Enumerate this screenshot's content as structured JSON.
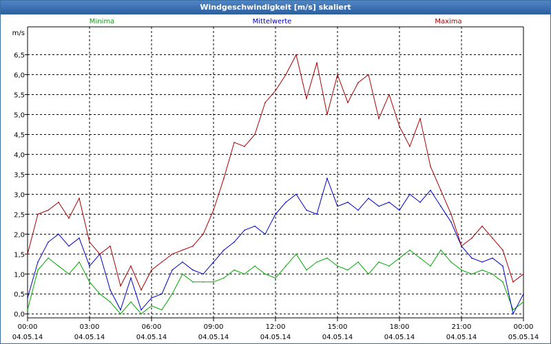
{
  "window": {
    "title": "Windgeschwindigkeit [m/s] skaliert"
  },
  "chart_data": {
    "type": "line",
    "title": "Windgeschwindigkeit [m/s] skaliert",
    "ylabel": "m/s",
    "xlabel": "",
    "ylim": [
      -0.1,
      7.2
    ],
    "yticks": [
      "0,0",
      "0,5",
      "1,0",
      "1,5",
      "2,0",
      "2,5",
      "3,0",
      "3,5",
      "4,0",
      "4,5",
      "5,0",
      "5,5",
      "6,0",
      "6,5"
    ],
    "yticks_values": [
      0,
      0.5,
      1,
      1.5,
      2,
      2.5,
      3,
      3.5,
      4,
      4.5,
      5,
      5.5,
      6,
      6.5
    ],
    "xticks": [
      {
        "time": "00:00",
        "date": "04.05.14"
      },
      {
        "time": "03:00",
        "date": "04.05.14"
      },
      {
        "time": "06:00",
        "date": "04.05.14"
      },
      {
        "time": "09:00",
        "date": "04.05.14"
      },
      {
        "time": "12:00",
        "date": "04.05.14"
      },
      {
        "time": "15:00",
        "date": "04.05.14"
      },
      {
        "time": "18:00",
        "date": "04.05.14"
      },
      {
        "time": "21:00",
        "date": "04.05.14"
      },
      {
        "time": "00:00",
        "date": "05.05.14"
      }
    ],
    "x_hours": [
      0,
      0.5,
      1,
      1.5,
      2,
      2.5,
      3,
      3.5,
      4,
      4.5,
      5,
      5.5,
      6,
      6.5,
      7,
      7.5,
      8,
      8.5,
      9,
      9.5,
      10,
      10.5,
      11,
      11.5,
      12,
      12.5,
      13,
      13.5,
      14,
      14.5,
      15,
      15.5,
      16,
      16.5,
      17,
      17.5,
      18,
      18.5,
      19,
      19.5,
      20,
      20.5,
      21,
      21.5,
      22,
      22.5,
      23,
      23.5,
      24
    ],
    "grid": true,
    "series": [
      {
        "name": "Minima",
        "color": "#00aa00",
        "values": [
          0.1,
          1.1,
          1.4,
          1.2,
          1.0,
          1.3,
          0.8,
          0.5,
          0.3,
          0.0,
          0.3,
          0.0,
          0.2,
          0.1,
          0.5,
          1.0,
          0.8,
          0.8,
          0.8,
          0.9,
          1.1,
          1.0,
          1.2,
          1.0,
          0.9,
          1.2,
          1.5,
          1.1,
          1.3,
          1.4,
          1.2,
          1.1,
          1.3,
          1.0,
          1.3,
          1.2,
          1.4,
          1.6,
          1.4,
          1.2,
          1.6,
          1.3,
          1.1,
          1.0,
          1.1,
          1.0,
          0.8,
          0.1,
          0.3
        ]
      },
      {
        "name": "Mittelwerte",
        "color": "#0000cc",
        "values": [
          0.4,
          1.3,
          1.8,
          2.0,
          1.7,
          1.9,
          1.2,
          1.5,
          0.6,
          0.1,
          0.9,
          0.1,
          0.4,
          0.5,
          1.1,
          1.3,
          1.1,
          1.0,
          1.3,
          1.6,
          1.8,
          2.1,
          2.2,
          2.0,
          2.5,
          2.8,
          3.0,
          2.6,
          2.5,
          3.4,
          2.7,
          2.8,
          2.6,
          2.9,
          2.7,
          2.8,
          2.6,
          3.0,
          2.8,
          3.1,
          2.7,
          2.3,
          1.7,
          1.4,
          1.3,
          1.4,
          1.2,
          0.0,
          0.5
        ]
      },
      {
        "name": "Maxima",
        "color": "#aa0000",
        "values": [
          1.5,
          2.5,
          2.6,
          2.8,
          2.4,
          2.9,
          1.8,
          1.5,
          1.7,
          0.7,
          1.2,
          0.6,
          1.1,
          1.3,
          1.5,
          1.6,
          1.7,
          2.0,
          2.6,
          3.4,
          4.3,
          4.2,
          4.5,
          5.3,
          5.6,
          6.0,
          6.5,
          5.4,
          6.3,
          5.0,
          6.0,
          5.3,
          5.8,
          6.0,
          4.9,
          5.5,
          4.7,
          4.2,
          4.9,
          3.7,
          3.1,
          2.5,
          1.7,
          1.9,
          2.2,
          1.9,
          1.6,
          0.8,
          1.0
        ]
      }
    ]
  }
}
